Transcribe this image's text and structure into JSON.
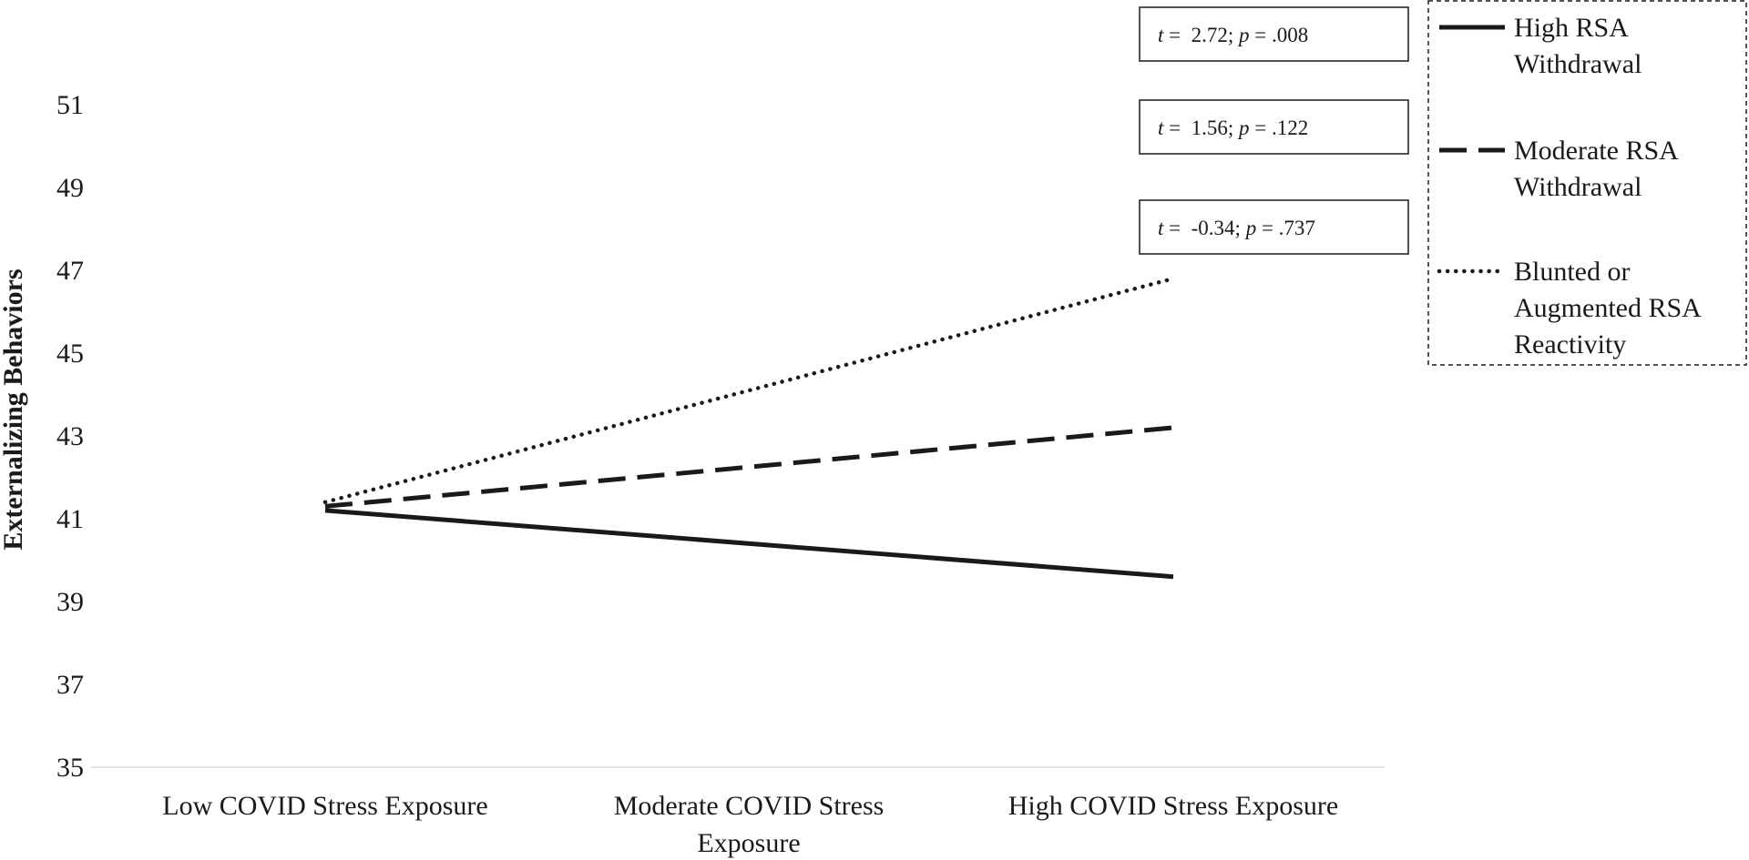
{
  "chart_data": {
    "type": "line",
    "categories": [
      "Low COVID Stress Exposure",
      "Moderate COVID Stress Exposure",
      "High COVID Stress Exposure"
    ],
    "category_lines": [
      [
        "Low COVID Stress Exposure"
      ],
      [
        "Moderate COVID Stress",
        "Exposure"
      ],
      [
        "High COVID Stress Exposure"
      ]
    ],
    "ylabel": "Externalizing Behaviors",
    "ylim": [
      35,
      51
    ],
    "yticks": [
      35,
      37,
      39,
      41,
      43,
      45,
      47,
      49,
      51
    ],
    "grid": false,
    "legend_position": "top-right",
    "series": [
      {
        "name": "High RSA Withdrawal",
        "name_lines": [
          "High RSA",
          "Withdrawal"
        ],
        "style": "solid",
        "x": [
          "Low COVID Stress Exposure",
          "High COVID Stress Exposure"
        ],
        "values": [
          41.2,
          39.6
        ],
        "annotation": {
          "t": "2.72",
          "p": ".008"
        }
      },
      {
        "name": "Moderate RSA Withdrawal",
        "name_lines": [
          "Moderate RSA",
          "Withdrawal"
        ],
        "style": "dashed",
        "x": [
          "Low COVID Stress Exposure",
          "High COVID Stress Exposure"
        ],
        "values": [
          41.3,
          43.2
        ],
        "annotation": {
          "t": "1.56",
          "p": ".122"
        }
      },
      {
        "name": "Blunted or Augmented RSA Reactivity",
        "name_lines": [
          "Blunted or",
          "Augmented RSA",
          "Reactivity"
        ],
        "style": "dotted",
        "x": [
          "Low COVID Stress Exposure",
          "High COVID Stress Exposure"
        ],
        "values": [
          41.4,
          46.8
        ],
        "annotation": {
          "t": "-0.34",
          "p": ".737"
        }
      }
    ],
    "annotation_labels": {
      "t": "t",
      "eq": " =  ",
      "sep": "; ",
      "p": "p",
      "peq": " = "
    },
    "colors": {
      "line": "#1a1a1a",
      "axis": "#d9d9d9",
      "box": "#1a1a1a"
    }
  }
}
